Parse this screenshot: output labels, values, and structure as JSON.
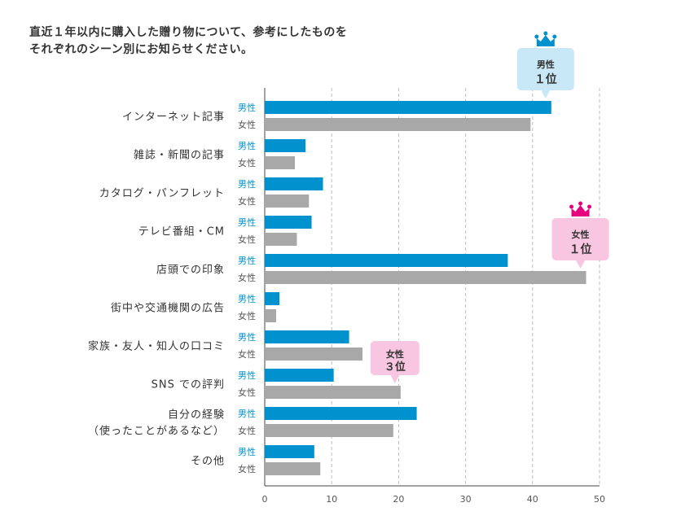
{
  "title_lines": [
    "直近１年以内に購入した贈り物について、参考にしたものを",
    "それぞれのシーン別にお知らせください。"
  ],
  "chart_data": {
    "type": "bar",
    "orientation": "horizontal",
    "categories": [
      [
        "インターネット記事"
      ],
      [
        "雑誌・新聞の記事"
      ],
      [
        "カタログ・パンフレット"
      ],
      [
        "テレビ番組・CM"
      ],
      [
        "店頭での印象"
      ],
      [
        "街中や交通機関の広告"
      ],
      [
        "家族・友人・知人の口コミ"
      ],
      [
        "SNS での評判"
      ],
      [
        "自分の経験",
        "（使ったことがあるなど）"
      ],
      [
        "その他"
      ]
    ],
    "series": [
      {
        "name": "男性",
        "color": "#0092cf",
        "values": [
          42.8,
          6.1,
          8.7,
          7.0,
          36.3,
          2.2,
          12.6,
          10.3,
          22.7,
          7.4
        ]
      },
      {
        "name": "女性",
        "color": "#a8a8a8",
        "values": [
          39.7,
          4.5,
          6.6,
          4.8,
          48.0,
          1.7,
          14.6,
          20.3,
          19.2,
          8.3
        ]
      }
    ],
    "xlim": [
      0,
      50
    ],
    "xticks": [
      0,
      10,
      20,
      30,
      40,
      50
    ],
    "grid": true,
    "callouts": [
      {
        "label_top": "男性",
        "label_bottom": "１位",
        "series": 0,
        "category": 0,
        "color": "#c9e8f7",
        "crown": "#0092cf",
        "position": "above"
      },
      {
        "label_top": "女性",
        "label_bottom": "１位",
        "series": 1,
        "category": 4,
        "color": "#f8c6e1",
        "crown": "#e6007e",
        "position": "above"
      },
      {
        "label_top": "女性",
        "label_bottom": "３位",
        "series": 1,
        "category": 7,
        "color": "#f8c6e1",
        "crown": null,
        "position": "above"
      }
    ]
  }
}
